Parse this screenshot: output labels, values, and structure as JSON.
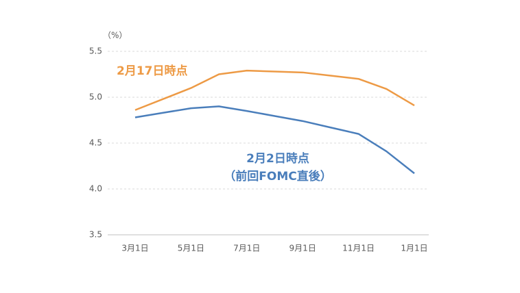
{
  "chart_data": {
    "type": "line",
    "y_unit": "（%）",
    "categories": [
      "3月1日",
      null,
      "5月1日",
      null,
      "7月1日",
      null,
      "9月1日",
      null,
      "11月1日",
      null,
      "1月1日"
    ],
    "series": [
      {
        "name": "2月17日時点",
        "color": "#ed9a45",
        "values": [
          4.86,
          4.98,
          5.1,
          5.25,
          5.29,
          5.28,
          5.27,
          5.235,
          5.2,
          5.09,
          4.91
        ]
      },
      {
        "name": "2月2日時点",
        "subname": "（前回FOMC直後）",
        "color": "#4a7ebb",
        "values": [
          4.78,
          4.83,
          4.88,
          4.9,
          4.85,
          4.795,
          4.74,
          4.67,
          4.6,
          4.41,
          4.17
        ]
      }
    ],
    "ylim": [
      3.5,
      5.5
    ],
    "yticks": [
      3.5,
      {
        "value": 4,
        "label": "4.0"
      },
      4.5,
      {
        "value": 5,
        "label": "5.0"
      },
      5.5
    ],
    "grid": true
  }
}
